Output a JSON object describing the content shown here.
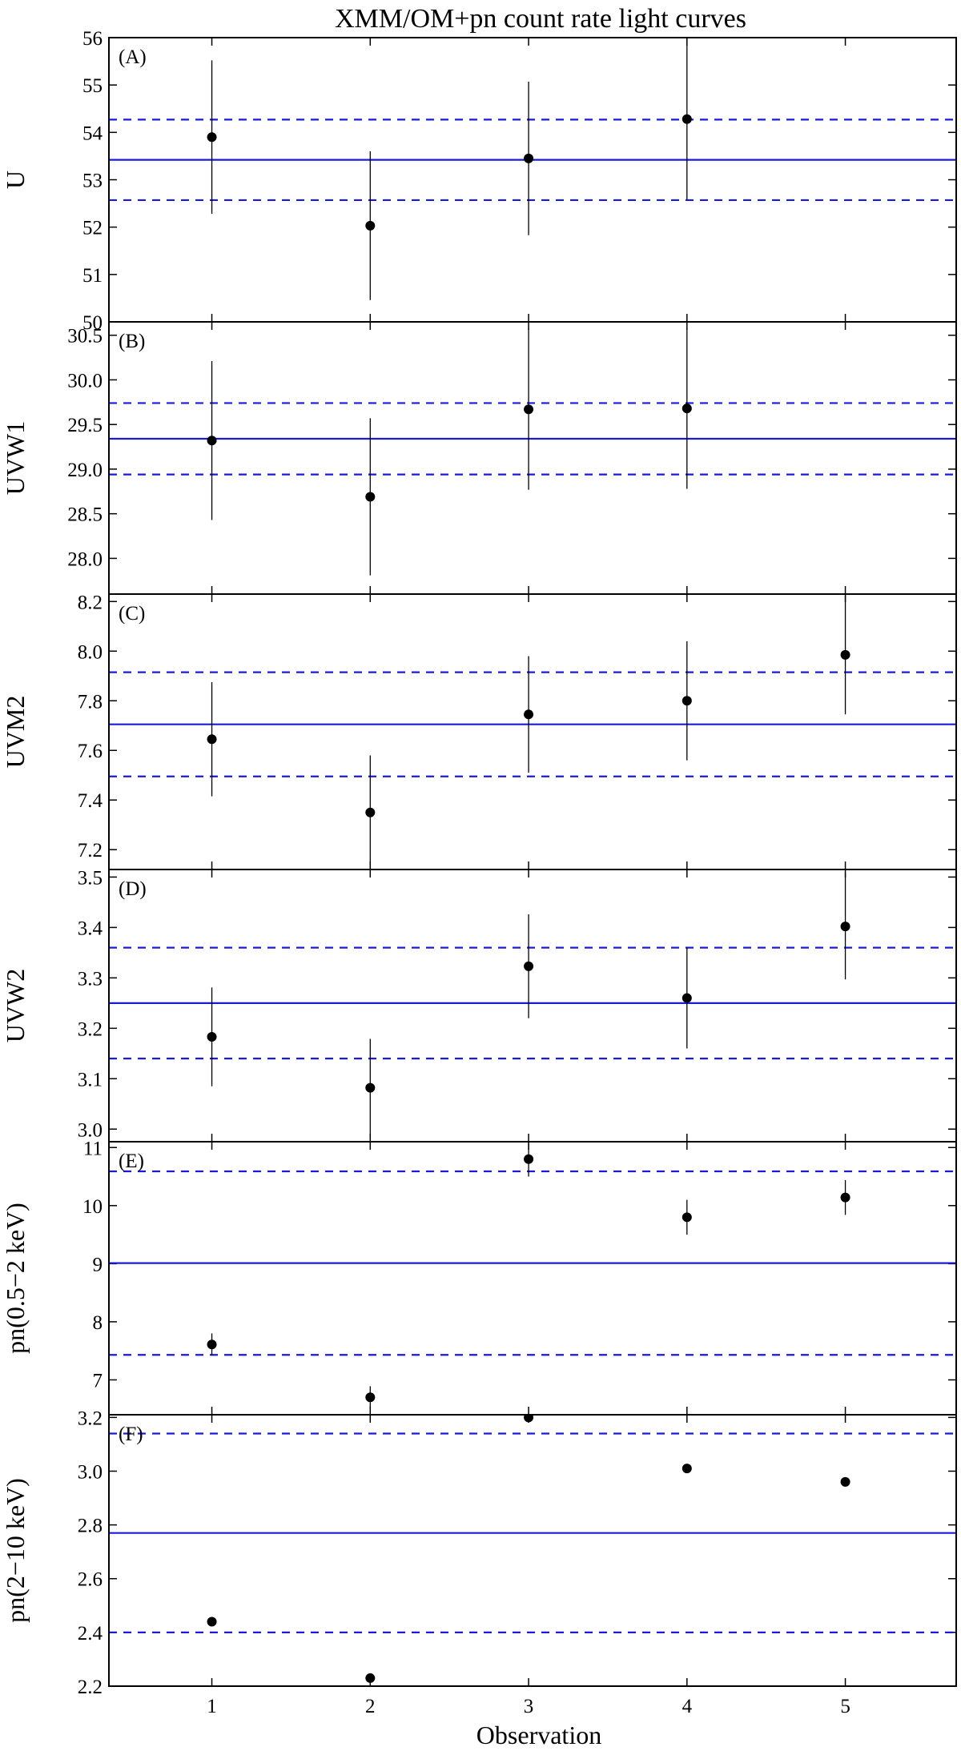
{
  "title": "XMM/OM+pn count rate light curves",
  "xlabel": "Observation",
  "x_ticks": [
    "1",
    "2",
    "3",
    "4",
    "5"
  ],
  "colors": {
    "mean_line": "#1a1adb",
    "points": "#000000",
    "frame": "#000000"
  },
  "chart_data": [
    {
      "type": "scatter",
      "panel": "(A)",
      "ylabel": "U",
      "ylim": [
        50,
        56
      ],
      "yticks": [
        50,
        51,
        52,
        53,
        54,
        55,
        56
      ],
      "decimals": 0,
      "x": [
        1,
        2,
        3,
        4
      ],
      "y": [
        53.9,
        52.03,
        53.45,
        54.28
      ],
      "yerr": [
        1.62,
        1.57,
        1.62,
        1.7
      ],
      "mean": 53.42,
      "band": [
        52.57,
        54.27
      ]
    },
    {
      "type": "scatter",
      "panel": "(B)",
      "ylabel": "UVW1",
      "ylim": [
        27.6,
        30.65
      ],
      "yticks": [
        28.0,
        28.5,
        29.0,
        29.5,
        30.0,
        30.5
      ],
      "decimals": 1,
      "x": [
        1,
        2,
        3,
        4
      ],
      "y": [
        29.32,
        28.69,
        29.67,
        29.68
      ],
      "yerr": [
        0.89,
        0.88,
        0.9,
        0.9
      ],
      "mean": 29.34,
      "band": [
        28.94,
        29.74
      ]
    },
    {
      "type": "scatter",
      "panel": "(C)",
      "ylabel": "UVM2",
      "ylim": [
        7.12,
        8.23
      ],
      "yticks": [
        7.2,
        7.4,
        7.6,
        7.8,
        8.0,
        8.2
      ],
      "decimals": 1,
      "x": [
        1,
        2,
        3,
        4,
        5
      ],
      "y": [
        7.645,
        7.35,
        7.745,
        7.8,
        7.985
      ],
      "yerr": [
        0.23,
        0.23,
        0.235,
        0.24,
        0.24
      ],
      "mean": 7.705,
      "band": [
        7.495,
        7.915
      ]
    },
    {
      "type": "scatter",
      "panel": "(D)",
      "ylabel": "UVW2",
      "ylim": [
        2.975,
        3.515
      ],
      "yticks": [
        3.0,
        3.1,
        3.2,
        3.3,
        3.4,
        3.5
      ],
      "decimals": 1,
      "x": [
        1,
        2,
        3,
        4,
        5
      ],
      "y": [
        3.183,
        3.082,
        3.323,
        3.26,
        3.402
      ],
      "yerr": [
        0.098,
        0.097,
        0.103,
        0.1,
        0.105
      ],
      "mean": 3.25,
      "band": [
        3.14,
        3.36
      ]
    },
    {
      "type": "scatter",
      "panel": "(E)",
      "ylabel": "pn(0.5−2 keV)",
      "ylim": [
        6.4,
        11.1
      ],
      "yticks": [
        7,
        8,
        9,
        10,
        11
      ],
      "decimals": 0,
      "x": [
        1,
        2,
        3,
        4,
        5
      ],
      "y": [
        7.61,
        6.7,
        10.8,
        9.8,
        10.14
      ],
      "yerr": [
        0.19,
        0.19,
        0.3,
        0.3,
        0.3
      ],
      "mean": 9.01,
      "band": [
        7.43,
        10.59
      ]
    },
    {
      "type": "scatter",
      "panel": "(F)",
      "ylabel": "pn(2−10 keV)",
      "ylim": [
        2.2,
        3.21
      ],
      "yticks": [
        2.2,
        2.4,
        2.6,
        2.8,
        3.0,
        3.2
      ],
      "decimals": 1,
      "x": [
        1,
        2,
        3,
        4,
        5
      ],
      "y": [
        2.44,
        2.23,
        3.2,
        3.01,
        2.96
      ],
      "yerr": [
        0,
        0,
        0,
        0,
        0
      ],
      "mean": 2.77,
      "band": [
        2.4,
        3.14
      ]
    }
  ]
}
